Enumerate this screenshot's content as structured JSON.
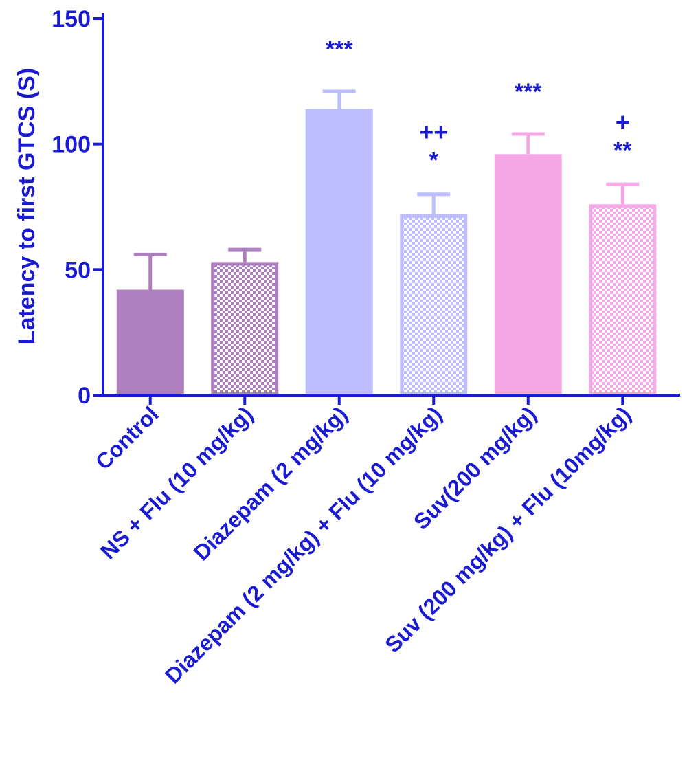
{
  "chart_data": {
    "type": "bar",
    "ylabel": "Latency to first GTCS (S)",
    "xlabel": "",
    "ylim": [
      0,
      150
    ],
    "yticks": [
      0,
      50,
      100,
      150
    ],
    "grid": false,
    "categories": [
      "Control",
      "NS + Flu (10 mg/kg)",
      "Diazepam (2 mg/kg)",
      "Diazepam (2 mg/kg) + Flu (10 mg/kg)",
      "Suv(200 mg/kg)",
      "Suv (200 mg/kg) + Flu (10mg/kg)"
    ],
    "values": [
      42,
      53,
      114,
      72,
      96,
      76
    ],
    "errors": [
      14,
      5,
      7,
      8,
      8,
      8
    ],
    "fill_patterns": [
      "solid",
      "checkered",
      "solid",
      "checkered",
      "solid",
      "checkered"
    ],
    "colors": [
      "#ad7fbf",
      "#ad7fbf",
      "#bdbdff",
      "#bdbdff",
      "#f5a8e6",
      "#f5a8e6"
    ],
    "significance_stars": [
      "",
      "",
      "***",
      "*",
      "***",
      "**"
    ],
    "significance_plus": [
      "",
      "",
      "",
      "++",
      "",
      "+"
    ],
    "axis_color": "#1a1ad0",
    "text_color": "#1a1ad0"
  }
}
